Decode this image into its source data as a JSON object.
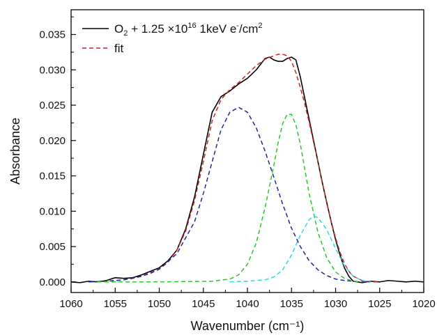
{
  "chart_data": {
    "type": "line",
    "xlabel": "Wavenumber (cm⁻¹)",
    "ylabel": "Absorbance",
    "xlim": [
      1060,
      1020
    ],
    "ylim": [
      -0.0015,
      0.0385
    ],
    "x_reversed": true,
    "x_ticks": [
      1060,
      1055,
      1050,
      1045,
      1040,
      1035,
      1030,
      1025,
      1020
    ],
    "x_tick_labels": [
      "1060",
      "1055",
      "1050",
      "1045",
      "1040",
      "1035",
      "1030",
      "1025",
      "1020"
    ],
    "y_ticks": [
      0,
      0.005,
      0.01,
      0.015,
      0.02,
      0.025,
      0.03,
      0.035
    ],
    "y_tick_labels": [
      "0.000",
      "0.005",
      "0.010",
      "0.015",
      "0.020",
      "0.025",
      "0.030",
      "0.035"
    ],
    "grid": false,
    "legend_position": "top-left",
    "legend": [
      {
        "series": "data",
        "parts": [
          "O",
          "2",
          " + 1.25 ×10",
          "16",
          " 1keV e",
          "-",
          "/cm",
          "2"
        ]
      },
      {
        "series": "fit",
        "parts": [
          "fit"
        ]
      }
    ],
    "series": [
      {
        "id": "data",
        "name": "O2 + 1.25 ×10^16 1keV e-/cm2",
        "color": "#000000",
        "style": "solid",
        "x": [
          1060,
          1059,
          1058,
          1057,
          1056,
          1055,
          1054,
          1053,
          1052,
          1051,
          1050,
          1049,
          1048,
          1047,
          1046,
          1045,
          1044,
          1043,
          1042,
          1041,
          1040,
          1039,
          1038,
          1037.5,
          1037,
          1036.5,
          1036,
          1035.5,
          1035,
          1034.5,
          1034,
          1033.5,
          1033,
          1032.5,
          1032,
          1031.5,
          1031,
          1030.5,
          1030,
          1029.5,
          1029,
          1028.5,
          1028,
          1027,
          1026,
          1025,
          1024,
          1023,
          1022,
          1021,
          1020
        ],
        "y": [
          0.0,
          -0.0001,
          0.0001,
          0.0,
          0.0002,
          0.0006,
          0.0005,
          0.0006,
          0.001,
          0.0015,
          0.002,
          0.003,
          0.0045,
          0.0075,
          0.012,
          0.018,
          0.024,
          0.0262,
          0.027,
          0.028,
          0.0288,
          0.03,
          0.0316,
          0.0318,
          0.0314,
          0.0312,
          0.0312,
          0.0316,
          0.0318,
          0.0314,
          0.029,
          0.026,
          0.023,
          0.02,
          0.017,
          0.014,
          0.0112,
          0.0085,
          0.006,
          0.0038,
          0.002,
          0.0008,
          0.0001,
          -0.0001,
          0.0001,
          0.0,
          0.0002,
          0.0001,
          0.0,
          0.0001,
          0.0
        ]
      },
      {
        "id": "fit",
        "name": "fit",
        "color": "#cc2222",
        "style": "dashed",
        "x": [
          1058,
          1057,
          1056,
          1055,
          1054,
          1053,
          1052,
          1051,
          1050,
          1049,
          1048,
          1047,
          1046,
          1045,
          1044,
          1043,
          1042,
          1041,
          1040,
          1039,
          1038,
          1037,
          1036.5,
          1036,
          1035.5,
          1035,
          1034.5,
          1034,
          1033.5,
          1033,
          1032.5,
          1032,
          1031.5,
          1031,
          1030.5,
          1030,
          1029.5,
          1029,
          1028.5,
          1028,
          1027,
          1026,
          1025
        ],
        "y": [
          0.0,
          0.0,
          0.0001,
          0.0002,
          0.0003,
          0.0005,
          0.0008,
          0.0012,
          0.0018,
          0.0028,
          0.0045,
          0.0072,
          0.0115,
          0.017,
          0.0228,
          0.0258,
          0.0272,
          0.0282,
          0.0294,
          0.0306,
          0.0315,
          0.032,
          0.0322,
          0.0322,
          0.032,
          0.0312,
          0.0296,
          0.0275,
          0.0252,
          0.0226,
          0.0198,
          0.017,
          0.014,
          0.0112,
          0.0085,
          0.0062,
          0.0042,
          0.0026,
          0.0015,
          0.0008,
          0.0002,
          0.0,
          0.0
        ]
      },
      {
        "id": "peak1",
        "name": "",
        "color": "#2222aa",
        "style": "dashed",
        "x": [
          1058,
          1056,
          1054,
          1052,
          1050,
          1048,
          1046,
          1045,
          1044,
          1043,
          1042,
          1041,
          1040,
          1039,
          1038,
          1037,
          1036,
          1035,
          1034,
          1033,
          1032,
          1031,
          1030,
          1029,
          1028,
          1027,
          1026
        ],
        "y": [
          0.0,
          0.0001,
          0.0003,
          0.0008,
          0.0018,
          0.004,
          0.0085,
          0.0125,
          0.017,
          0.0215,
          0.024,
          0.0247,
          0.024,
          0.0218,
          0.0185,
          0.0148,
          0.011,
          0.0076,
          0.005,
          0.003,
          0.0017,
          0.0009,
          0.0004,
          0.0002,
          0.0001,
          0.0,
          0.0
        ]
      },
      {
        "id": "peak2",
        "name": "",
        "color": "#22cc22",
        "style": "dashed",
        "x": [
          1057,
          1050,
          1044,
          1042,
          1041,
          1040,
          1039,
          1038,
          1037,
          1036.5,
          1036,
          1035.5,
          1035,
          1034.5,
          1034,
          1033.5,
          1033,
          1032,
          1031,
          1030,
          1029,
          1028,
          1027
        ],
        "y": [
          0.0,
          0.0,
          0.0001,
          0.0004,
          0.001,
          0.0025,
          0.0055,
          0.0105,
          0.0165,
          0.0198,
          0.0224,
          0.0237,
          0.0237,
          0.0222,
          0.0195,
          0.016,
          0.0125,
          0.007,
          0.0034,
          0.0014,
          0.0005,
          0.0001,
          0.0
        ]
      },
      {
        "id": "peak3",
        "name": "",
        "color": "#22dddd",
        "style": "dashed",
        "x": [
          1042,
          1040,
          1038,
          1037,
          1036,
          1035,
          1034,
          1033,
          1032.5,
          1032,
          1031,
          1030,
          1029,
          1028,
          1027,
          1026
        ],
        "y": [
          0.0,
          0.0001,
          0.0003,
          0.0007,
          0.0017,
          0.0038,
          0.0066,
          0.0088,
          0.0093,
          0.0091,
          0.0074,
          0.0047,
          0.0023,
          0.0008,
          0.0002,
          0.0
        ]
      }
    ]
  }
}
